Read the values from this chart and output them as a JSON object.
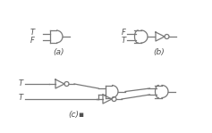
{
  "bg_color": "#ffffff",
  "line_color": "#787878",
  "text_color": "#505050",
  "label_a": "(a)",
  "label_b": "(b)",
  "label_c": "(c)",
  "inputs_a": [
    "T",
    "F"
  ],
  "inputs_b": [
    "F",
    "T"
  ],
  "inputs_c": [
    "T",
    "T"
  ],
  "figsize": [
    2.37,
    1.49
  ],
  "dpi": 100
}
